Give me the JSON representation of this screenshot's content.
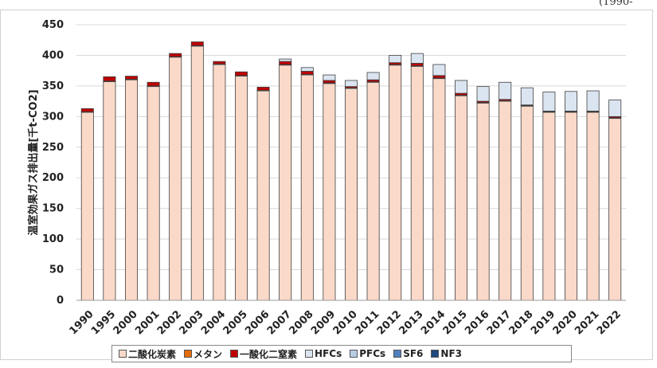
{
  "header": {
    "corner_text": "(1990-"
  },
  "colors": {
    "co2": "#fbd9c9",
    "ch4": "#e46c0a",
    "n2o": "#c00000",
    "hfcs": "#dbe5f1",
    "pfcs": "#b8cce4",
    "sf6": "#4f81bd",
    "nf3": "#1f497d"
  },
  "chart_data": {
    "type": "bar",
    "stacked": true,
    "ylabel": "温室効果ガス排出量[千t-CO2]",
    "ylim": [
      0,
      450
    ],
    "yticks": [
      0,
      50,
      100,
      150,
      200,
      250,
      300,
      350,
      400,
      450
    ],
    "categories": [
      "1990",
      "1995",
      "2000",
      "2001",
      "2002",
      "2003",
      "2004",
      "2005",
      "2006",
      "2007",
      "2008",
      "2009",
      "2010",
      "2011",
      "2012",
      "2013",
      "2014",
      "2015",
      "2016",
      "2017",
      "2018",
      "2019",
      "2020",
      "2021",
      "2022"
    ],
    "series": [
      {
        "name": "二酸化炭素",
        "color_key": "co2",
        "values": [
          307,
          357,
          360,
          349,
          397,
          415,
          385,
          366,
          342,
          384,
          368,
          354,
          346,
          356,
          384,
          382,
          362,
          334,
          322,
          325,
          317,
          307,
          307,
          307,
          297
        ]
      },
      {
        "name": "メタン",
        "color_key": "ch4",
        "values": [
          1,
          1,
          1,
          1,
          1,
          1,
          1,
          1,
          1,
          1,
          1,
          1,
          1,
          1,
          1,
          1,
          1,
          1,
          1,
          1,
          1,
          1,
          1,
          1,
          1
        ]
      },
      {
        "name": "一酸化二窒素",
        "color_key": "n2o",
        "values": [
          5,
          7,
          5,
          6,
          5,
          6,
          4,
          6,
          5,
          5,
          5,
          4,
          2,
          3,
          3,
          4,
          4,
          3,
          2,
          2,
          1,
          1,
          1,
          1,
          2
        ]
      },
      {
        "name": "HFCs",
        "color_key": "hfcs",
        "values": [
          0,
          0,
          0,
          0,
          0,
          0,
          0,
          0,
          0,
          4,
          6,
          9,
          10,
          12,
          12,
          16,
          18,
          21,
          24,
          28,
          28,
          31,
          32,
          33,
          27
        ]
      },
      {
        "name": "PFCs",
        "color_key": "pfcs",
        "values": [
          0,
          0,
          0,
          0,
          0,
          0,
          0,
          0,
          0,
          0,
          0,
          0,
          0,
          0,
          0,
          0,
          0,
          0,
          0,
          0,
          0,
          0,
          0,
          0,
          0
        ]
      },
      {
        "name": "SF6",
        "color_key": "sf6",
        "values": [
          0,
          0,
          0,
          0,
          0,
          0,
          0,
          0,
          0,
          0,
          0,
          0,
          0,
          0,
          0,
          0,
          0,
          0,
          0,
          0,
          0,
          0,
          0,
          0,
          0
        ]
      },
      {
        "name": "NF3",
        "color_key": "nf3",
        "values": [
          0,
          0,
          0,
          0,
          0,
          0,
          0,
          0,
          0,
          0,
          0,
          0,
          0,
          0,
          0,
          0,
          0,
          0,
          0,
          0,
          0,
          0,
          0,
          0,
          0
        ]
      }
    ],
    "legend_position": "bottom",
    "grid": true
  }
}
